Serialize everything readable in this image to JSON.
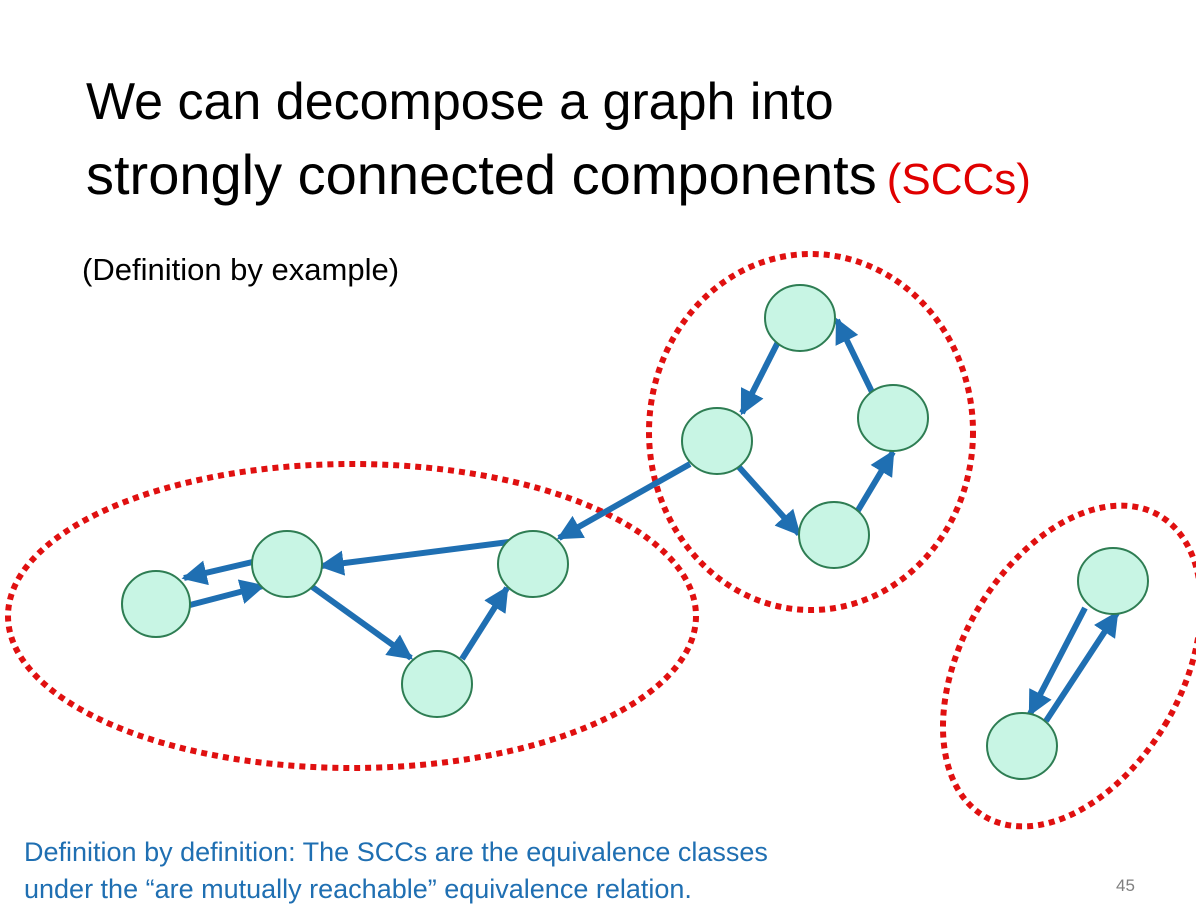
{
  "slide": {
    "title_line1": "We can decompose a graph into",
    "title_line2": "strongly connected components",
    "title_accent": "(SCCs)",
    "subtitle": "(Definition by example)",
    "bottom_line1": "Definition by definition: The SCCs are the equivalence classes",
    "bottom_line2": "under the “are mutually reachable” equivalence relation.",
    "page_number": "45"
  },
  "colors": {
    "node_fill": "#c8f5e4",
    "node_stroke": "#2e7d53",
    "edge": "#1f6fb2",
    "component_outline": "#e01010",
    "accent_text": "#e00000",
    "bottom_text": "#1f6fb2"
  }
}
